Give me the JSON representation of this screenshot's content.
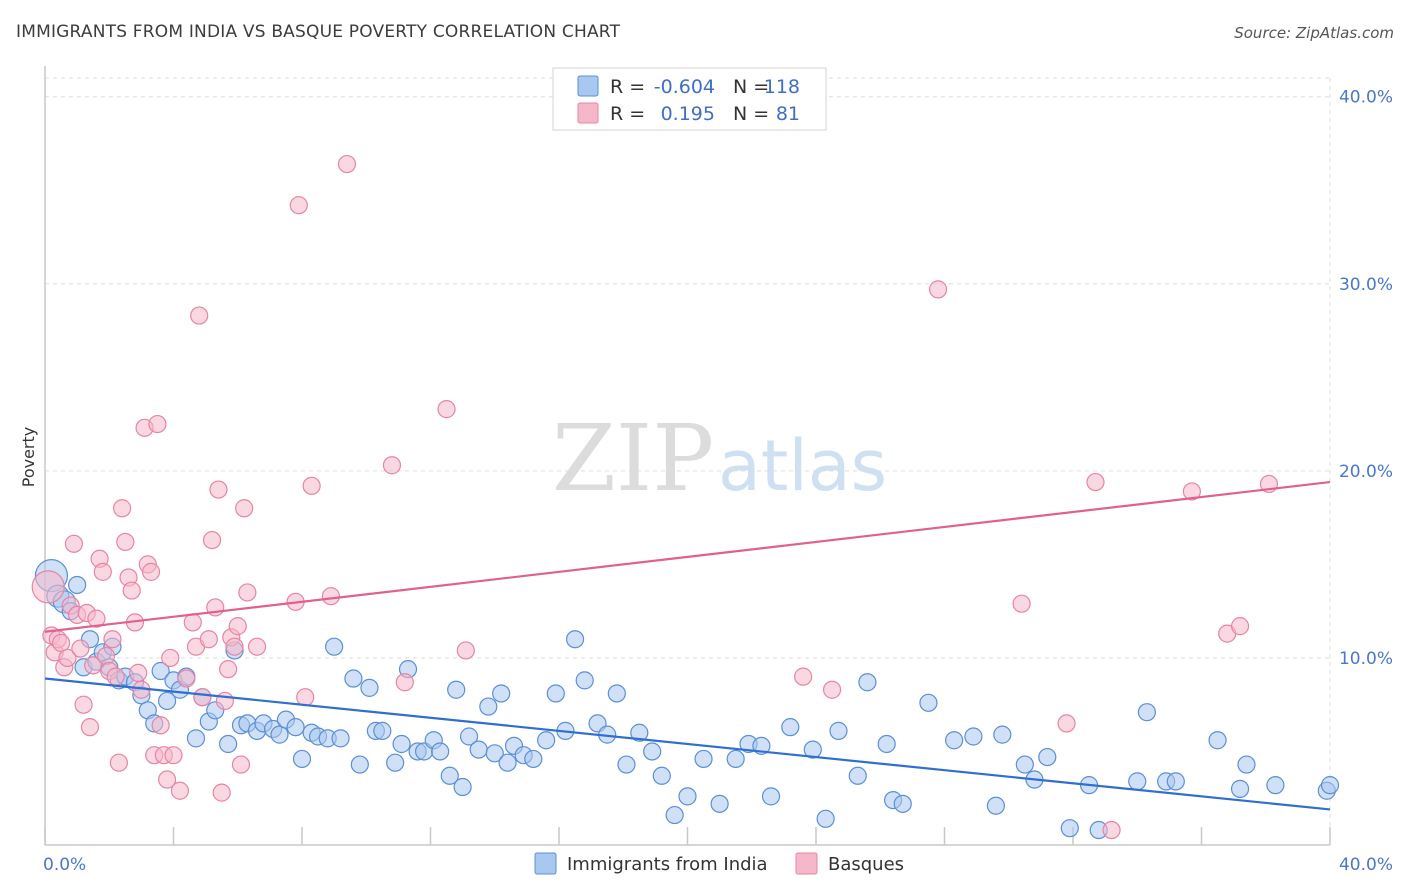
{
  "title": "IMMIGRANTS FROM INDIA VS BASQUE POVERTY CORRELATION CHART",
  "source": "Source: ZipAtlas.com",
  "watermark": {
    "zip": "ZIP",
    "atlas": "atlas"
  },
  "colors": {
    "india_fill": "#a9c8f0",
    "india_stroke": "#5b8fd6",
    "india_line": "#2f6fd0",
    "basque_fill": "#f5b8cb",
    "basque_stroke": "#e784a6",
    "basque_line": "#e0608e",
    "tick_text": "#4a78c8",
    "grid": "#dddddd"
  },
  "legend": {
    "rows": [
      {
        "series": "india",
        "r_label": "R =",
        "r_value": "-0.604",
        "n_label": "N =",
        "n_value": "118"
      },
      {
        "series": "basque",
        "r_label": "R =",
        "r_value": "0.195",
        "n_label": "N =",
        "n_value": "81"
      }
    ]
  },
  "chart_data": {
    "type": "scatter",
    "title": "IMMIGRANTS FROM INDIA VS BASQUE POVERTY CORRELATION CHART",
    "xlabel": "",
    "ylabel": "Poverty",
    "xlim": [
      0,
      40
    ],
    "ylim": [
      0,
      41
    ],
    "x_tick_labels": [
      "0.0%",
      "40.0%"
    ],
    "y_ticks": [
      10,
      20,
      30,
      40
    ],
    "y_tick_labels": [
      "10.0%",
      "20.0%",
      "30.0%",
      "40.0%"
    ],
    "grid": true,
    "legend_position": "top-center",
    "series": [
      {
        "name": "Immigrants from India",
        "r": -0.604,
        "n": 118,
        "trend": {
          "x": [
            0,
            40
          ],
          "y": [
            8.9,
            1.9
          ]
        },
        "points": [
          [
            0.2,
            14.4
          ],
          [
            0.4,
            13.3
          ],
          [
            0.6,
            13.0
          ],
          [
            1.0,
            13.9
          ],
          [
            0.8,
            12.5
          ],
          [
            1.2,
            9.5
          ],
          [
            1.4,
            11.0
          ],
          [
            1.6,
            9.8
          ],
          [
            1.8,
            10.3
          ],
          [
            2.0,
            9.5
          ],
          [
            2.1,
            10.6
          ],
          [
            2.3,
            8.8
          ],
          [
            2.5,
            9.0
          ],
          [
            2.8,
            8.7
          ],
          [
            3.0,
            8.0
          ],
          [
            3.2,
            7.2
          ],
          [
            3.4,
            6.5
          ],
          [
            3.6,
            9.3
          ],
          [
            3.8,
            7.7
          ],
          [
            4.0,
            8.8
          ],
          [
            4.2,
            8.3
          ],
          [
            4.4,
            9.0
          ],
          [
            4.7,
            5.7
          ],
          [
            4.9,
            7.9
          ],
          [
            5.1,
            6.6
          ],
          [
            5.3,
            7.2
          ],
          [
            5.7,
            5.4
          ],
          [
            5.9,
            10.4
          ],
          [
            6.1,
            6.4
          ],
          [
            6.3,
            6.5
          ],
          [
            6.6,
            6.1
          ],
          [
            6.8,
            6.5
          ],
          [
            7.1,
            6.2
          ],
          [
            7.3,
            5.9
          ],
          [
            7.5,
            6.7
          ],
          [
            7.8,
            6.3
          ],
          [
            8.0,
            4.6
          ],
          [
            8.3,
            6.0
          ],
          [
            8.5,
            5.8
          ],
          [
            8.8,
            5.7
          ],
          [
            9.0,
            10.6
          ],
          [
            9.2,
            5.7
          ],
          [
            9.6,
            8.9
          ],
          [
            9.8,
            4.3
          ],
          [
            10.1,
            8.4
          ],
          [
            10.3,
            6.1
          ],
          [
            10.5,
            6.1
          ],
          [
            10.9,
            4.4
          ],
          [
            11.1,
            5.4
          ],
          [
            11.3,
            9.4
          ],
          [
            11.6,
            5.0
          ],
          [
            11.8,
            5.0
          ],
          [
            12.1,
            5.6
          ],
          [
            12.3,
            5.0
          ],
          [
            12.6,
            3.7
          ],
          [
            12.8,
            8.3
          ],
          [
            13.0,
            3.1
          ],
          [
            13.2,
            5.8
          ],
          [
            13.5,
            5.1
          ],
          [
            13.8,
            7.4
          ],
          [
            14.0,
            4.9
          ],
          [
            14.2,
            8.1
          ],
          [
            14.4,
            4.4
          ],
          [
            14.6,
            5.3
          ],
          [
            14.9,
            4.8
          ],
          [
            15.2,
            4.6
          ],
          [
            15.6,
            5.6
          ],
          [
            15.9,
            8.1
          ],
          [
            16.2,
            6.1
          ],
          [
            16.5,
            11.0
          ],
          [
            16.8,
            8.8
          ],
          [
            17.2,
            6.5
          ],
          [
            17.5,
            5.9
          ],
          [
            17.8,
            8.1
          ],
          [
            18.1,
            4.3
          ],
          [
            18.5,
            6.0
          ],
          [
            18.9,
            5.0
          ],
          [
            19.2,
            3.7
          ],
          [
            19.6,
            1.6
          ],
          [
            20.0,
            2.6
          ],
          [
            20.5,
            4.6
          ],
          [
            21.0,
            2.2
          ],
          [
            21.5,
            4.6
          ],
          [
            21.9,
            5.4
          ],
          [
            22.3,
            5.3
          ],
          [
            22.6,
            2.6
          ],
          [
            23.2,
            6.3
          ],
          [
            23.9,
            5.1
          ],
          [
            24.3,
            1.4
          ],
          [
            24.7,
            6.1
          ],
          [
            25.3,
            3.7
          ],
          [
            25.6,
            8.7
          ],
          [
            26.2,
            5.4
          ],
          [
            26.4,
            2.4
          ],
          [
            26.7,
            2.2
          ],
          [
            27.5,
            7.6
          ],
          [
            28.3,
            5.6
          ],
          [
            28.9,
            5.8
          ],
          [
            29.6,
            2.1
          ],
          [
            29.8,
            5.9
          ],
          [
            30.5,
            4.3
          ],
          [
            30.8,
            3.5
          ],
          [
            31.2,
            4.7
          ],
          [
            31.9,
            0.9
          ],
          [
            32.5,
            3.2
          ],
          [
            32.8,
            0.8
          ],
          [
            34.0,
            3.4
          ],
          [
            34.3,
            7.1
          ],
          [
            34.9,
            3.4
          ],
          [
            35.2,
            3.4
          ],
          [
            36.5,
            5.6
          ],
          [
            37.2,
            3.0
          ],
          [
            37.4,
            4.3
          ],
          [
            38.3,
            3.2
          ],
          [
            39.9,
            2.9
          ],
          [
            40.0,
            3.2
          ]
        ]
      },
      {
        "name": "Basques",
        "r": 0.195,
        "n": 81,
        "trend": {
          "x": [
            0,
            40
          ],
          "y": [
            11.4,
            19.4
          ]
        },
        "points": [
          [
            0.1,
            13.8
          ],
          [
            0.2,
            11.2
          ],
          [
            0.3,
            10.3
          ],
          [
            0.4,
            11.0
          ],
          [
            0.5,
            10.8
          ],
          [
            0.6,
            9.5
          ],
          [
            0.7,
            10.0
          ],
          [
            0.8,
            12.8
          ],
          [
            0.9,
            16.1
          ],
          [
            1.0,
            12.3
          ],
          [
            1.1,
            10.5
          ],
          [
            1.2,
            7.5
          ],
          [
            1.3,
            12.4
          ],
          [
            1.4,
            6.3
          ],
          [
            1.5,
            9.6
          ],
          [
            1.6,
            12.1
          ],
          [
            1.7,
            15.3
          ],
          [
            1.8,
            14.6
          ],
          [
            1.9,
            10.1
          ],
          [
            2.0,
            9.3
          ],
          [
            2.1,
            11.0
          ],
          [
            2.2,
            9.0
          ],
          [
            2.3,
            4.4
          ],
          [
            2.4,
            18.0
          ],
          [
            2.5,
            16.2
          ],
          [
            2.6,
            14.3
          ],
          [
            2.7,
            13.6
          ],
          [
            2.8,
            11.9
          ],
          [
            2.9,
            9.2
          ],
          [
            3.0,
            8.3
          ],
          [
            3.1,
            22.3
          ],
          [
            3.2,
            15.0
          ],
          [
            3.3,
            14.6
          ],
          [
            3.4,
            4.8
          ],
          [
            3.5,
            22.5
          ],
          [
            3.6,
            6.4
          ],
          [
            3.7,
            4.8
          ],
          [
            3.8,
            3.5
          ],
          [
            3.9,
            10.0
          ],
          [
            4.0,
            4.8
          ],
          [
            4.2,
            2.9
          ],
          [
            4.4,
            8.9
          ],
          [
            4.6,
            11.9
          ],
          [
            4.7,
            10.6
          ],
          [
            4.8,
            28.3
          ],
          [
            4.9,
            7.9
          ],
          [
            5.1,
            11.0
          ],
          [
            5.2,
            16.3
          ],
          [
            5.3,
            12.7
          ],
          [
            5.4,
            19.0
          ],
          [
            5.5,
            2.8
          ],
          [
            5.6,
            7.7
          ],
          [
            5.7,
            9.4
          ],
          [
            5.8,
            11.1
          ],
          [
            5.9,
            10.6
          ],
          [
            6.0,
            11.7
          ],
          [
            6.1,
            4.3
          ],
          [
            6.2,
            18.0
          ],
          [
            6.3,
            13.5
          ],
          [
            6.6,
            10.6
          ],
          [
            7.8,
            13.0
          ],
          [
            7.9,
            34.2
          ],
          [
            8.1,
            7.9
          ],
          [
            8.3,
            19.2
          ],
          [
            8.9,
            13.3
          ],
          [
            9.4,
            36.4
          ],
          [
            10.8,
            20.3
          ],
          [
            11.2,
            8.7
          ],
          [
            12.5,
            23.3
          ],
          [
            13.1,
            10.4
          ],
          [
            23.6,
            9.0
          ],
          [
            24.5,
            8.3
          ],
          [
            27.8,
            29.7
          ],
          [
            30.4,
            12.9
          ],
          [
            31.8,
            6.5
          ],
          [
            32.7,
            19.4
          ],
          [
            33.2,
            0.8
          ],
          [
            35.7,
            18.9
          ],
          [
            36.8,
            11.3
          ],
          [
            37.2,
            11.7
          ],
          [
            38.1,
            19.3
          ]
        ]
      }
    ]
  },
  "bottom_legend": [
    {
      "series": "india",
      "label": "Immigrants from India"
    },
    {
      "series": "basque",
      "label": "Basques"
    }
  ]
}
